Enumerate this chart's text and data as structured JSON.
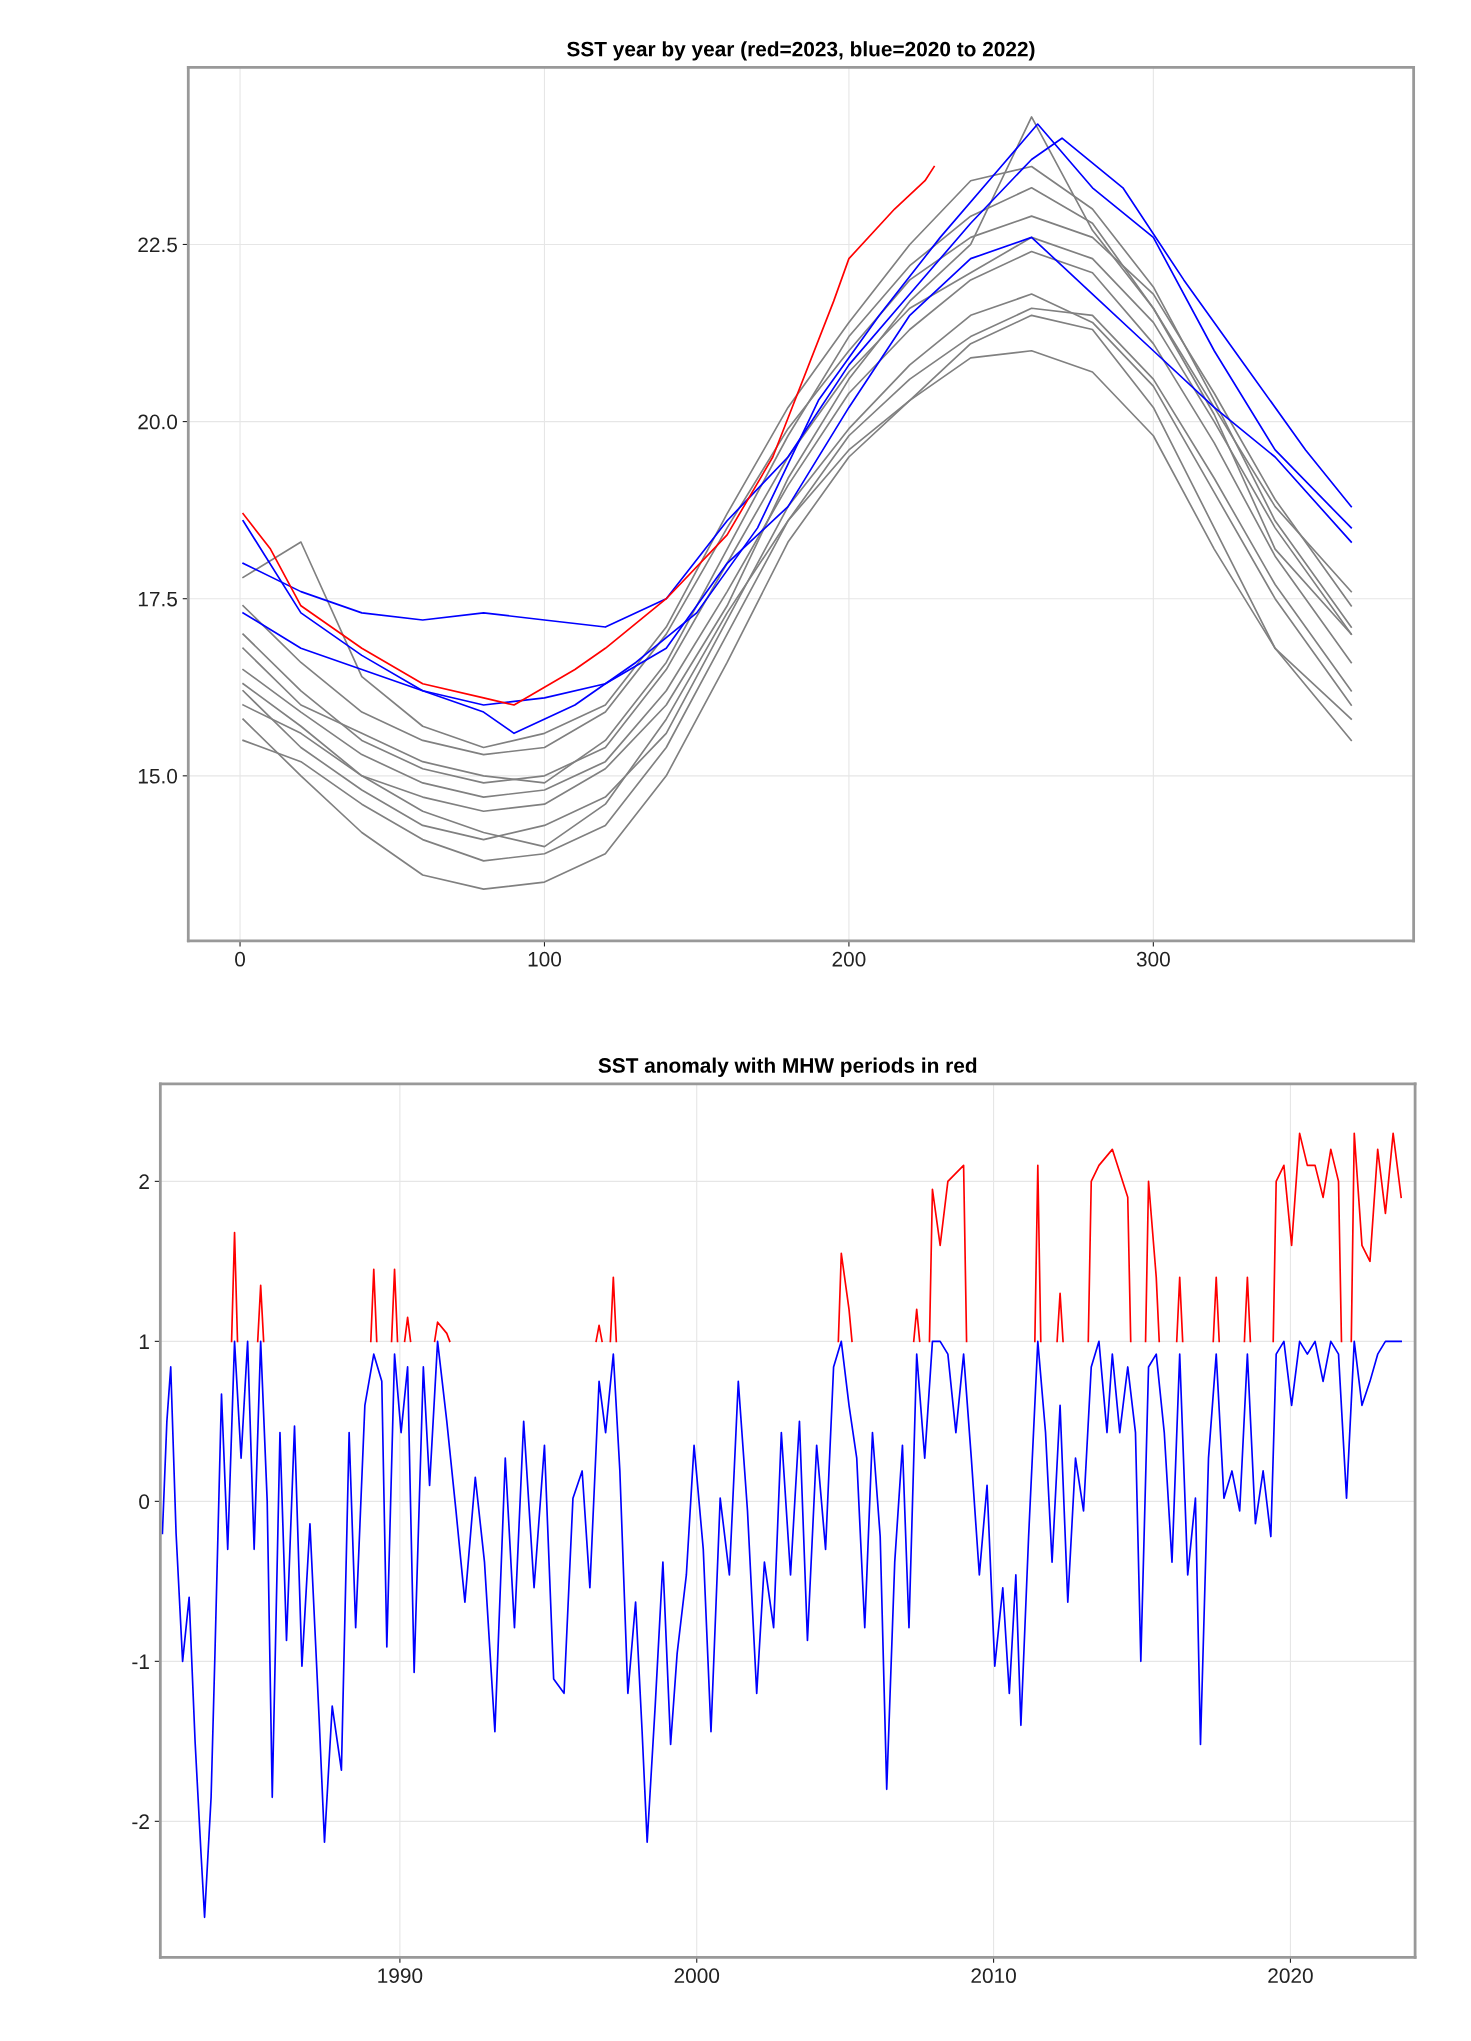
{
  "chart_data": [
    {
      "type": "line",
      "title": "SST year by year (red=2023, blue=2020 to 2022)",
      "xlim": [
        -17,
        385.5
      ],
      "ylim": [
        12.67,
        25.0
      ],
      "xticks": [
        0,
        100,
        200,
        300
      ],
      "yticks": [
        {
          "value": 15,
          "label": "15.0"
        },
        {
          "value": 17.5,
          "label": "17.5"
        },
        {
          "value": 20,
          "label": "20.0"
        },
        {
          "value": 22.5,
          "label": "22.5"
        }
      ],
      "grid": true,
      "series": [
        {
          "color": "#808080",
          "x": [
            1,
            20,
            40,
            60,
            80,
            100,
            120,
            140,
            160,
            180,
            200,
            220,
            240,
            260,
            280,
            300,
            320,
            340,
            365
          ],
          "values": [
            15.8,
            15.0,
            14.2,
            13.6,
            13.4,
            13.5,
            13.9,
            15.0,
            16.6,
            18.3,
            19.5,
            20.3,
            20.9,
            21.0,
            20.7,
            19.8,
            18.2,
            16.8,
            15.5
          ]
        },
        {
          "color": "#808080",
          "x": [
            1,
            20,
            40,
            60,
            80,
            100,
            120,
            140,
            160,
            180,
            200,
            220,
            240,
            260,
            280,
            300,
            320,
            340,
            365
          ],
          "values": [
            16.2,
            15.4,
            14.8,
            14.3,
            14.1,
            14.3,
            14.7,
            15.6,
            17.2,
            18.8,
            19.9,
            20.8,
            21.5,
            21.8,
            21.4,
            20.5,
            19.0,
            17.5,
            16.0
          ]
        },
        {
          "color": "#808080",
          "x": [
            1,
            20,
            40,
            60,
            80,
            100,
            120,
            140,
            160,
            180,
            200,
            220,
            240,
            260,
            280,
            300,
            320,
            340,
            365
          ],
          "values": [
            16.5,
            15.9,
            15.3,
            14.9,
            14.7,
            14.8,
            15.2,
            16.2,
            17.6,
            19.1,
            20.4,
            21.3,
            22.0,
            22.4,
            22.1,
            21.1,
            19.7,
            18.1,
            16.6
          ]
        },
        {
          "color": "#808080",
          "x": [
            1,
            20,
            40,
            60,
            80,
            100,
            120,
            140,
            160,
            180,
            200,
            220,
            240,
            260,
            280,
            300,
            320,
            340,
            365
          ],
          "values": [
            17.0,
            16.2,
            15.5,
            15.1,
            14.9,
            15.0,
            15.4,
            16.5,
            18.0,
            19.5,
            20.7,
            21.6,
            22.1,
            22.6,
            22.3,
            21.4,
            20.0,
            18.5,
            17.0
          ]
        },
        {
          "color": "#808080",
          "x": [
            1,
            20,
            40,
            60,
            80,
            100,
            120,
            140,
            160,
            180,
            200,
            220,
            240,
            260,
            280,
            300,
            320,
            340,
            365
          ],
          "values": [
            17.4,
            16.6,
            15.9,
            15.5,
            15.3,
            15.4,
            15.9,
            17.0,
            18.5,
            19.9,
            21.0,
            22.0,
            22.6,
            22.9,
            22.6,
            21.8,
            20.4,
            18.9,
            17.4
          ]
        },
        {
          "color": "#808080",
          "x": [
            1,
            20,
            40,
            60,
            80,
            100,
            120,
            140,
            160,
            180,
            200,
            220,
            240,
            260,
            280,
            300,
            320,
            340,
            365
          ],
          "values": [
            16.0,
            15.6,
            15.0,
            14.5,
            14.2,
            14.0,
            14.6,
            15.8,
            17.3,
            18.6,
            19.8,
            20.6,
            21.2,
            21.6,
            21.5,
            20.6,
            19.2,
            17.7,
            16.2
          ]
        },
        {
          "color": "#808080",
          "x": [
            1,
            20,
            40,
            60,
            80,
            100,
            120,
            140,
            160,
            180,
            200,
            220,
            240,
            260,
            280,
            300,
            320,
            340,
            365
          ],
          "values": [
            17.8,
            18.3,
            16.4,
            15.7,
            15.4,
            15.6,
            16.0,
            17.1,
            18.7,
            20.2,
            21.4,
            22.5,
            23.4,
            23.6,
            23.0,
            21.9,
            20.3,
            18.6,
            17.1
          ]
        },
        {
          "color": "#808080",
          "x": [
            1,
            20,
            40,
            60,
            80,
            100,
            120,
            140,
            160,
            180,
            200,
            220,
            240,
            260,
            280,
            300,
            320,
            340,
            365
          ],
          "values": [
            15.5,
            15.2,
            14.6,
            14.1,
            13.8,
            13.9,
            14.3,
            15.4,
            17.0,
            18.6,
            19.6,
            20.3,
            21.1,
            21.5,
            21.3,
            20.2,
            18.5,
            16.8,
            15.8
          ]
        },
        {
          "color": "#808080",
          "x": [
            1,
            20,
            40,
            60,
            80,
            100,
            120,
            140,
            160,
            180,
            200,
            220,
            240,
            260,
            280,
            300,
            320,
            340,
            365
          ],
          "values": [
            16.8,
            16.0,
            15.6,
            15.2,
            15.0,
            14.9,
            15.5,
            16.6,
            18.2,
            19.8,
            21.2,
            22.2,
            22.9,
            23.3,
            22.8,
            21.6,
            20.2,
            18.8,
            17.6
          ]
        },
        {
          "color": "#808080",
          "x": [
            1,
            20,
            40,
            60,
            80,
            100,
            120,
            140,
            160,
            180,
            200,
            220,
            240,
            260,
            280,
            300,
            320,
            340,
            365
          ],
          "values": [
            16.3,
            15.7,
            15.0,
            14.7,
            14.5,
            14.6,
            15.1,
            16.0,
            17.4,
            19.2,
            20.6,
            21.7,
            22.5,
            24.3,
            22.7,
            21.6,
            20.1,
            18.2,
            17.0
          ]
        },
        {
          "color": "#0000ff",
          "x": [
            1,
            20,
            40,
            60,
            80,
            90,
            110,
            130,
            150,
            170,
            190,
            210,
            230,
            250,
            262,
            280,
            300,
            320,
            340,
            365
          ],
          "values": [
            18.6,
            17.3,
            16.7,
            16.2,
            15.9,
            15.6,
            16.0,
            16.6,
            17.3,
            18.5,
            20.3,
            21.5,
            22.6,
            23.6,
            24.2,
            23.3,
            22.6,
            21.0,
            19.6,
            18.5
          ]
        },
        {
          "color": "#0000ff",
          "x": [
            1,
            20,
            40,
            60,
            80,
            100,
            120,
            140,
            160,
            180,
            200,
            220,
            240,
            260,
            270,
            290,
            310,
            330,
            350,
            365
          ],
          "values": [
            18.0,
            17.6,
            17.3,
            17.2,
            17.3,
            17.2,
            17.1,
            17.5,
            18.6,
            19.5,
            20.8,
            21.8,
            22.8,
            23.7,
            24.0,
            23.3,
            22.0,
            20.8,
            19.6,
            18.8
          ]
        },
        {
          "color": "#0000ff",
          "x": [
            1,
            20,
            40,
            60,
            80,
            100,
            120,
            140,
            160,
            180,
            200,
            220,
            240,
            260,
            280,
            300,
            320,
            340,
            365
          ],
          "values": [
            17.3,
            16.8,
            16.5,
            16.2,
            16.0,
            16.1,
            16.3,
            16.8,
            18.0,
            18.8,
            20.2,
            21.5,
            22.3,
            22.6,
            21.8,
            21.0,
            20.2,
            19.5,
            18.3
          ]
        },
        {
          "color": "#ff0000",
          "x": [
            1,
            10,
            20,
            40,
            60,
            80,
            90,
            110,
            120,
            140,
            160,
            175,
            195,
            200,
            215,
            225,
            228
          ],
          "values": [
            18.7,
            18.2,
            17.4,
            16.8,
            16.3,
            16.1,
            16.0,
            16.5,
            16.8,
            17.5,
            18.4,
            19.5,
            21.7,
            22.3,
            23.0,
            23.4,
            23.6
          ]
        }
      ]
    },
    {
      "type": "line",
      "title": "SST anomaly with MHW periods in red",
      "xlim": [
        1981.93,
        2024.2
      ],
      "ylim": [
        -2.85,
        2.61
      ],
      "xticks": [
        1990,
        2000,
        2010,
        2020
      ],
      "yticks": [
        -2,
        -1,
        0,
        1,
        2
      ],
      "grid": true,
      "series": [
        {
          "color": "#0000ff",
          "x": [
            1982.0,
            1982.15,
            1982.28,
            1982.46,
            1982.68,
            1982.9,
            1983.1,
            1983.3,
            1983.42,
            1983.64,
            1983.77,
            1983.99,
            1984.2,
            1984.43,
            1984.65,
            1984.87,
            1985.09,
            1985.31,
            1985.53,
            1985.7,
            1985.96,
            1986.18,
            1986.45,
            1986.7,
            1986.97,
            1987.28,
            1987.46,
            1987.72,
            1988.03,
            1988.29,
            1988.51,
            1988.82,
            1989.12,
            1989.39,
            1989.56,
            1989.82,
            1990.04,
            1990.26,
            1990.48,
            1990.79,
            1991.0,
            1991.27,
            1991.58,
            1991.89,
            1992.19,
            1992.54,
            1992.85,
            1993.2,
            1993.55,
            1993.86,
            1994.17,
            1994.52,
            1994.87,
            1995.18,
            1995.53,
            1995.83,
            1996.14,
            1996.4,
            1996.71,
            1996.93,
            1997.19,
            1997.41,
            1997.68,
            1997.94,
            1998.16,
            1998.33,
            1998.6,
            1998.86,
            1999.12,
            1999.34,
            1999.65,
            1999.91,
            2000.22,
            2000.48,
            2000.79,
            2001.1,
            2001.4,
            2001.71,
            2002.02,
            2002.28,
            2002.59,
            2002.85,
            2003.16,
            2003.46,
            2003.73,
            2004.04,
            2004.34,
            2004.61,
            2004.87,
            2005.13,
            2005.39,
            2005.66,
            2005.92,
            2006.18,
            2006.4,
            2006.67,
            2006.93,
            2007.15,
            2007.41,
            2007.68,
            2007.94,
            2008.2,
            2008.46,
            2008.73,
            2008.99,
            2009.25,
            2009.52,
            2009.78,
            2010.04,
            2010.31,
            2010.53,
            2010.75,
            2010.92,
            2011.18,
            2011.49,
            2011.75,
            2011.97,
            2012.24,
            2012.5,
            2012.76,
            2013.03,
            2013.29,
            2013.55,
            2013.82,
            2014.0,
            2014.25,
            2014.52,
            2014.78,
            2014.96,
            2015.22,
            2015.48,
            2015.75,
            2016.01,
            2016.27,
            2016.54,
            2016.8,
            2016.97,
            2017.24,
            2017.5,
            2017.76,
            2018.03,
            2018.29,
            2018.55,
            2018.82,
            2019.08,
            2019.34,
            2019.52,
            2019.78,
            2020.04,
            2020.31,
            2020.57,
            2020.83,
            2021.1,
            2021.36,
            2021.62,
            2021.89,
            2022.15,
            2022.41,
            2022.68,
            2022.94,
            2023.2,
            2023.46,
            2023.73
          ],
          "values": [
            -0.2,
            0.5,
            0.84,
            -0.2,
            -1.0,
            -0.6,
            -1.5,
            -2.2,
            -2.6,
            -1.85,
            -0.95,
            0.67,
            -0.3,
            1.0,
            0.27,
            1.0,
            -0.3,
            1.0,
            0,
            -1.85,
            0.43,
            -0.87,
            0.47,
            -1.03,
            -0.14,
            -1.36,
            -2.13,
            -1.28,
            -1.68,
            0.43,
            -0.79,
            0.6,
            0.92,
            0.75,
            -0.91,
            0.92,
            0.43,
            0.84,
            -1.07,
            0.84,
            0.1,
            1.0,
            0.5,
            -0.06,
            -0.63,
            0.15,
            -0.38,
            -1.44,
            0.27,
            -0.79,
            0.5,
            -0.54,
            0.35,
            -1.11,
            -1.2,
            0.02,
            0.19,
            -0.54,
            0.75,
            0.43,
            0.92,
            0.19,
            -1.2,
            -0.63,
            -1.44,
            -2.13,
            -1.28,
            -0.38,
            -1.52,
            -0.95,
            -0.46,
            0.35,
            -0.3,
            -1.44,
            0.02,
            -0.46,
            0.75,
            -0.06,
            -1.2,
            -0.38,
            -0.79,
            0.43,
            -0.46,
            0.5,
            -0.87,
            0.35,
            -0.3,
            0.84,
            1.0,
            0.6,
            0.27,
            -0.79,
            0.43,
            -0.22,
            -1.8,
            -0.38,
            0.35,
            -0.79,
            0.92,
            0.27,
            1.0,
            1.0,
            0.92,
            0.43,
            0.92,
            0.27,
            -0.46,
            0.1,
            -1.03,
            -0.54,
            -1.2,
            -0.46,
            -1.4,
            -0.22,
            1.0,
            0.43,
            -0.38,
            0.6,
            -0.63,
            0.27,
            -0.06,
            0.84,
            1.0,
            0.43,
            0.92,
            0.43,
            0.84,
            0.43,
            -1.0,
            0.84,
            0.92,
            0.43,
            -0.38,
            0.92,
            -0.46,
            0.02,
            -1.52,
            0.27,
            0.92,
            0.02,
            0.19,
            -0.06,
            0.92,
            -0.14,
            0.19,
            -0.22,
            0.92,
            1.0,
            0.6,
            1.0,
            0.92,
            1.0,
            0.75,
            1.0,
            0.92,
            0.02,
            1.0,
            0.6,
            0.75,
            0.92,
            1.0,
            1.0,
            1.0
          ]
        },
        {
          "color": "#ff0000",
          "x": [
            1984.33,
            1984.43,
            1984.53,
            1984.6,
            1985.21,
            1985.31,
            1985.41,
            1985.5,
            1989.02,
            1989.12,
            1989.22,
            1989.3,
            1989.72,
            1989.82,
            1989.92,
            1990.0,
            1990.16,
            1990.26,
            1990.36,
            1990.45,
            1991.17,
            1991.27,
            1991.58,
            1991.68,
            1991.75,
            1996.61,
            1996.71,
            1996.81,
            1996.9,
            1997.09,
            1997.19,
            1997.29,
            1997.35,
            2004.77,
            2004.87,
            2005.13,
            2005.23,
            2005.3,
            2007.31,
            2007.41,
            2007.51,
            2007.6,
            2007.84,
            2007.94,
            2008.2,
            2008.46,
            2008.99,
            2009.09,
            2009.2,
            2011.39,
            2011.49,
            2011.59,
            2011.7,
            2012.14,
            2012.24,
            2012.34,
            2012.45,
            2013.19,
            2013.29,
            2013.55,
            2014.0,
            2014.52,
            2014.62,
            2014.7,
            2015.12,
            2015.22,
            2015.48,
            2015.58,
            2015.65,
            2016.17,
            2016.27,
            2016.37,
            2016.45,
            2017.4,
            2017.5,
            2017.6,
            2017.7,
            2018.45,
            2018.55,
            2018.65,
            2018.75,
            2019.42,
            2019.52,
            2019.78,
            2020.04,
            2020.31,
            2020.57,
            2020.83,
            2021.1,
            2021.36,
            2021.62,
            2021.72,
            2021.8,
            2022.05,
            2022.15,
            2022.41,
            2022.68,
            2022.94,
            2023.2,
            2023.46,
            2023.73
          ],
          "values": [
            1.0,
            1.68,
            1.0,
            null,
            1.0,
            1.35,
            1.0,
            null,
            1.0,
            1.45,
            1.0,
            null,
            1.0,
            1.45,
            1.0,
            null,
            1.0,
            1.15,
            1.0,
            null,
            1.0,
            1.12,
            1.05,
            1.0,
            null,
            1.0,
            1.1,
            1.0,
            null,
            1.0,
            1.4,
            1.0,
            null,
            1.0,
            1.55,
            1.2,
            1.0,
            null,
            1.0,
            1.2,
            1.0,
            null,
            1.0,
            1.95,
            1.6,
            2.0,
            2.1,
            1.0,
            null,
            1.0,
            2.1,
            1.0,
            null,
            1.0,
            1.3,
            1.0,
            null,
            1.0,
            2.0,
            2.1,
            2.2,
            1.9,
            1.0,
            null,
            1.0,
            2.0,
            1.4,
            1.0,
            null,
            1.0,
            1.4,
            1.0,
            null,
            1.0,
            1.4,
            1.0,
            null,
            1.0,
            1.4,
            1.0,
            null,
            1.0,
            2.0,
            2.1,
            1.6,
            2.3,
            2.1,
            2.1,
            1.9,
            2.2,
            2.0,
            1.0,
            null,
            1.0,
            2.3,
            1.6,
            1.5,
            2.2,
            1.8,
            2.3,
            1.9
          ]
        }
      ]
    }
  ]
}
